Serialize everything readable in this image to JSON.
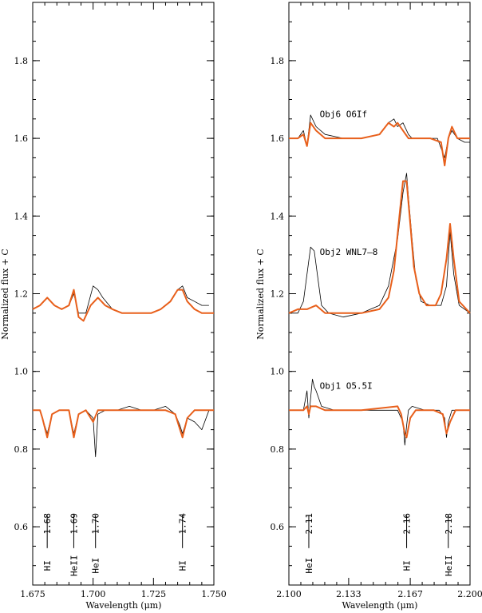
{
  "chart_data": [
    {
      "type": "line",
      "xlabel": "Wavelength (μm)",
      "ylabel": "Normalized flux + C",
      "xlim": [
        1.675,
        1.75
      ],
      "ylim": [
        0.45,
        1.95
      ],
      "x_ticks": [
        1.675,
        1.7,
        1.725,
        1.75
      ],
      "x_tick_labels": [
        "1.675",
        "1.700",
        "1.725",
        "1.750"
      ],
      "y_ticks": [
        0.6,
        0.8,
        1.0,
        1.2,
        1.4,
        1.6,
        1.8
      ],
      "y_tick_labels": [
        "0.6",
        "0.8",
        "1.0",
        "1.2",
        "1.4",
        "1.6",
        "1.8"
      ],
      "series": [
        {
          "color": "#000000",
          "x": [
            1.675,
            1.678,
            1.681,
            1.684,
            1.687,
            1.69,
            1.692,
            1.694,
            1.697,
            1.7,
            1.702,
            1.704,
            1.708,
            1.712,
            1.716,
            1.72,
            1.724,
            1.728,
            1.732,
            1.735,
            1.737,
            1.739,
            1.742,
            1.745,
            1.748
          ],
          "y": [
            1.16,
            1.17,
            1.19,
            1.17,
            1.16,
            1.17,
            1.2,
            1.15,
            1.15,
            1.22,
            1.21,
            1.19,
            1.16,
            1.15,
            1.15,
            1.15,
            1.15,
            1.16,
            1.18,
            1.21,
            1.22,
            1.19,
            1.18,
            1.17,
            1.17
          ]
        },
        {
          "color": "#e8601c",
          "x": [
            1.675,
            1.678,
            1.681,
            1.684,
            1.687,
            1.69,
            1.692,
            1.694,
            1.696,
            1.699,
            1.702,
            1.705,
            1.708,
            1.712,
            1.716,
            1.72,
            1.724,
            1.728,
            1.732,
            1.735,
            1.737,
            1.739,
            1.742,
            1.745,
            1.75
          ],
          "y": [
            1.16,
            1.17,
            1.19,
            1.17,
            1.16,
            1.17,
            1.21,
            1.14,
            1.13,
            1.17,
            1.19,
            1.17,
            1.16,
            1.15,
            1.15,
            1.15,
            1.15,
            1.16,
            1.18,
            1.21,
            1.21,
            1.18,
            1.16,
            1.15,
            1.15
          ]
        },
        {
          "color": "#000000",
          "x": [
            1.675,
            1.678,
            1.679,
            1.681,
            1.683,
            1.686,
            1.69,
            1.692,
            1.694,
            1.697,
            1.7,
            1.701,
            1.702,
            1.705,
            1.71,
            1.715,
            1.72,
            1.725,
            1.73,
            1.734,
            1.736,
            1.737,
            1.739,
            1.742,
            1.745,
            1.748
          ],
          "y": [
            0.9,
            0.9,
            0.88,
            0.84,
            0.89,
            0.9,
            0.9,
            0.84,
            0.89,
            0.9,
            0.88,
            0.78,
            0.89,
            0.9,
            0.9,
            0.91,
            0.9,
            0.9,
            0.91,
            0.89,
            0.86,
            0.84,
            0.88,
            0.87,
            0.85,
            0.9
          ]
        },
        {
          "color": "#e8601c",
          "x": [
            1.675,
            1.678,
            1.679,
            1.681,
            1.683,
            1.686,
            1.69,
            1.692,
            1.694,
            1.697,
            1.7,
            1.702,
            1.705,
            1.71,
            1.72,
            1.73,
            1.734,
            1.736,
            1.737,
            1.739,
            1.742,
            1.75
          ],
          "y": [
            0.9,
            0.9,
            0.88,
            0.83,
            0.89,
            0.9,
            0.9,
            0.83,
            0.89,
            0.9,
            0.87,
            0.9,
            0.9,
            0.9,
            0.9,
            0.9,
            0.89,
            0.85,
            0.83,
            0.88,
            0.9,
            0.9
          ]
        }
      ],
      "line_markers": [
        {
          "x": 1.681,
          "ion": "HI",
          "wavelength": "1.68"
        },
        {
          "x": 1.692,
          "ion": "HeII",
          "wavelength": "1.69"
        },
        {
          "x": 1.701,
          "ion": "HeI",
          "wavelength": "1.70"
        },
        {
          "x": 1.737,
          "ion": "HI",
          "wavelength": "1.74"
        }
      ],
      "annotations": []
    },
    {
      "type": "line",
      "xlabel": "Wavelength (μm)",
      "ylabel": "Normalized flux + C",
      "xlim": [
        2.1,
        2.2
      ],
      "ylim": [
        0.45,
        1.95
      ],
      "x_ticks": [
        2.1,
        2.133,
        2.167,
        2.2
      ],
      "x_tick_labels": [
        "2.100",
        "2.133",
        "2.167",
        "2.200"
      ],
      "y_ticks": [
        0.6,
        0.8,
        1.0,
        1.2,
        1.4,
        1.6,
        1.8
      ],
      "y_tick_labels": [
        "0.6",
        "0.8",
        "1.0",
        "1.2",
        "1.4",
        "1.6",
        "1.8"
      ],
      "series": [
        {
          "color": "#000000",
          "x": [
            2.1,
            2.105,
            2.108,
            2.11,
            2.112,
            2.115,
            2.12,
            2.13,
            2.14,
            2.15,
            2.155,
            2.158,
            2.16,
            2.163,
            2.166,
            2.168,
            2.172,
            2.178,
            2.182,
            2.186,
            2.188,
            2.19,
            2.193,
            2.197,
            2.2
          ],
          "y": [
            1.6,
            1.6,
            1.62,
            1.58,
            1.66,
            1.63,
            1.61,
            1.6,
            1.6,
            1.61,
            1.64,
            1.65,
            1.63,
            1.64,
            1.61,
            1.6,
            1.6,
            1.6,
            1.6,
            1.55,
            1.6,
            1.62,
            1.6,
            1.59,
            1.59
          ]
        },
        {
          "color": "#e8601c",
          "x": [
            2.1,
            2.105,
            2.108,
            2.11,
            2.112,
            2.115,
            2.12,
            2.13,
            2.14,
            2.15,
            2.155,
            2.158,
            2.16,
            2.163,
            2.166,
            2.17,
            2.178,
            2.184,
            2.186,
            2.188,
            2.19,
            2.193,
            2.2
          ],
          "y": [
            1.6,
            1.6,
            1.61,
            1.58,
            1.64,
            1.62,
            1.6,
            1.6,
            1.6,
            1.61,
            1.64,
            1.63,
            1.64,
            1.62,
            1.6,
            1.6,
            1.6,
            1.59,
            1.53,
            1.6,
            1.63,
            1.6,
            1.6
          ]
        },
        {
          "color": "#000000",
          "x": [
            2.1,
            2.105,
            2.108,
            2.11,
            2.112,
            2.114,
            2.116,
            2.118,
            2.122,
            2.13,
            2.14,
            2.15,
            2.155,
            2.16,
            2.163,
            2.165,
            2.166,
            2.168,
            2.17,
            2.173,
            2.178,
            2.184,
            2.187,
            2.189,
            2.191,
            2.194,
            2.2
          ],
          "y": [
            1.15,
            1.15,
            1.18,
            1.25,
            1.32,
            1.31,
            1.24,
            1.17,
            1.15,
            1.14,
            1.15,
            1.17,
            1.22,
            1.34,
            1.46,
            1.51,
            1.45,
            1.34,
            1.24,
            1.18,
            1.17,
            1.17,
            1.22,
            1.36,
            1.25,
            1.17,
            1.15
          ]
        },
        {
          "color": "#e8601c",
          "x": [
            2.1,
            2.105,
            2.11,
            2.115,
            2.12,
            2.13,
            2.14,
            2.15,
            2.155,
            2.158,
            2.161,
            2.163,
            2.165,
            2.167,
            2.169,
            2.172,
            2.176,
            2.181,
            2.184,
            2.187,
            2.189,
            2.191,
            2.194,
            2.2
          ],
          "y": [
            1.15,
            1.16,
            1.16,
            1.17,
            1.15,
            1.15,
            1.15,
            1.16,
            1.19,
            1.26,
            1.4,
            1.49,
            1.49,
            1.38,
            1.27,
            1.2,
            1.17,
            1.17,
            1.2,
            1.29,
            1.38,
            1.29,
            1.18,
            1.15
          ]
        },
        {
          "color": "#000000",
          "x": [
            2.1,
            2.108,
            2.11,
            2.111,
            2.112,
            2.113,
            2.114,
            2.115,
            2.118,
            2.125,
            2.135,
            2.15,
            2.16,
            2.163,
            2.164,
            2.165,
            2.166,
            2.168,
            2.175,
            2.183,
            2.186,
            2.187,
            2.188,
            2.19,
            2.195,
            2.2
          ],
          "y": [
            0.9,
            0.9,
            0.95,
            0.88,
            0.93,
            0.98,
            0.96,
            0.95,
            0.91,
            0.9,
            0.9,
            0.9,
            0.9,
            0.87,
            0.81,
            0.86,
            0.9,
            0.91,
            0.9,
            0.9,
            0.88,
            0.83,
            0.87,
            0.9,
            0.9,
            0.9
          ]
        },
        {
          "color": "#e8601c",
          "x": [
            2.1,
            2.108,
            2.11,
            2.111,
            2.112,
            2.115,
            2.12,
            2.14,
            2.16,
            2.162,
            2.164,
            2.165,
            2.167,
            2.17,
            2.18,
            2.185,
            2.187,
            2.189,
            2.192,
            2.2
          ],
          "y": [
            0.9,
            0.9,
            0.91,
            0.89,
            0.91,
            0.91,
            0.9,
            0.9,
            0.91,
            0.89,
            0.84,
            0.83,
            0.88,
            0.9,
            0.9,
            0.89,
            0.84,
            0.87,
            0.9,
            0.9
          ]
        }
      ],
      "line_markers": [
        {
          "x": 2.111,
          "ion": "HeI",
          "wavelength": "2.11"
        },
        {
          "x": 2.165,
          "ion": "HI",
          "wavelength": "2.16"
        },
        {
          "x": 2.188,
          "ion": "HeII",
          "wavelength": "2.18"
        }
      ],
      "annotations": [
        {
          "x": 2.117,
          "y": 1.655,
          "text": "Obj6   O6If"
        },
        {
          "x": 2.117,
          "y": 1.3,
          "text": "Obj2   WNL7–8"
        },
        {
          "x": 2.117,
          "y": 0.955,
          "text": "Obj1   O5.5I"
        }
      ]
    }
  ]
}
